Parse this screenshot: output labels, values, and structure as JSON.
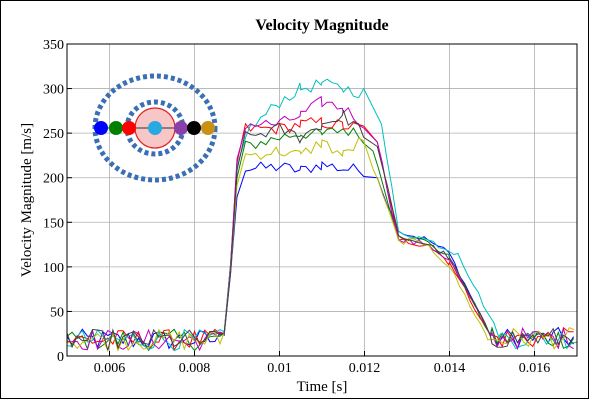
{
  "chart_data": {
    "type": "line",
    "title": "Velocity Magnitude",
    "xlabel": "Time [s]",
    "ylabel": "Velocity Magnitude [m/s]",
    "xlim": [
      0.005,
      0.017
    ],
    "ylim": [
      0,
      350
    ],
    "x_ticks": [
      0.006,
      0.008,
      0.01,
      0.012,
      0.014,
      0.016
    ],
    "x_tick_labels": [
      "0.006",
      "0.008",
      "0.01",
      "0.012",
      "0.014",
      "0.016"
    ],
    "y_ticks": [
      0,
      50,
      100,
      150,
      200,
      250,
      300,
      350
    ],
    "y_tick_labels": [
      "0",
      "50",
      "100",
      "150",
      "200",
      "250",
      "300",
      "350"
    ],
    "grid": true,
    "series": [
      {
        "color": "#0000ff",
        "profile": {
          "plateau": [
            [
              0.0092,
              210
            ],
            [
              0.01,
              212
            ],
            [
              0.0105,
              208
            ],
            [
              0.011,
              215
            ],
            [
              0.0115,
              210
            ],
            [
              0.012,
              208
            ]
          ],
          "peak_time": 0.0123,
          "peak_value": 200,
          "mid": [
            [
              0.0128,
              140
            ],
            [
              0.0135,
              130
            ],
            [
              0.014,
              115
            ]
          ],
          "drop_end": 0.015
        }
      },
      {
        "color": "#008000",
        "profile": {
          "plateau": [
            [
              0.0092,
              235
            ],
            [
              0.01,
              245
            ],
            [
              0.0105,
              250
            ],
            [
              0.011,
              248
            ],
            [
              0.0115,
              255
            ],
            [
              0.012,
              245
            ]
          ],
          "peak_time": 0.0122,
          "peak_value": 230,
          "mid": [
            [
              0.0128,
              135
            ],
            [
              0.0135,
              128
            ],
            [
              0.014,
              110
            ]
          ],
          "drop_end": 0.015
        }
      },
      {
        "color": "#ff0000",
        "profile": {
          "plateau": [
            [
              0.0092,
              255
            ],
            [
              0.01,
              255
            ],
            [
              0.0105,
              260
            ],
            [
              0.011,
              262
            ],
            [
              0.0115,
              258
            ],
            [
              0.012,
              255
            ]
          ],
          "peak_time": 0.0123,
          "peak_value": 240,
          "mid": [
            [
              0.0128,
              130
            ],
            [
              0.0135,
              125
            ],
            [
              0.014,
              105
            ]
          ],
          "drop_end": 0.015
        }
      },
      {
        "color": "#00bfbf",
        "profile": {
          "plateau": [
            [
              0.0092,
              250
            ],
            [
              0.01,
              285
            ],
            [
              0.0105,
              300
            ],
            [
              0.011,
              305
            ],
            [
              0.0115,
              300
            ],
            [
              0.012,
              295
            ]
          ],
          "peak_time": 0.0124,
          "peak_value": 260,
          "mid": [
            [
              0.0128,
              140
            ],
            [
              0.0135,
              130
            ],
            [
              0.0142,
              115
            ]
          ],
          "drop_end": 0.0152
        }
      },
      {
        "color": "#bf00bf",
        "profile": {
          "plateau": [
            [
              0.0092,
              260
            ],
            [
              0.01,
              260
            ],
            [
              0.0105,
              270
            ],
            [
              0.011,
              285
            ],
            [
              0.0115,
              278
            ],
            [
              0.012,
              260
            ]
          ],
          "peak_time": 0.0123,
          "peak_value": 240,
          "mid": [
            [
              0.0128,
              130
            ],
            [
              0.0135,
              125
            ],
            [
              0.014,
              108
            ]
          ],
          "drop_end": 0.015
        }
      },
      {
        "color": "#bfbf00",
        "profile": {
          "plateau": [
            [
              0.0092,
              225
            ],
            [
              0.01,
              230
            ],
            [
              0.0105,
              225
            ],
            [
              0.011,
              240
            ],
            [
              0.0115,
              225
            ],
            [
              0.012,
              245
            ]
          ],
          "peak_time": 0.0122,
          "peak_value": 210,
          "mid": [
            [
              0.0128,
              130
            ],
            [
              0.0135,
              125
            ],
            [
              0.014,
              100
            ]
          ],
          "drop_end": 0.0149
        }
      },
      {
        "color": "#404040",
        "profile": {
          "plateau": [
            [
              0.0092,
              245
            ],
            [
              0.01,
              255
            ],
            [
              0.0105,
              245
            ],
            [
              0.011,
              260
            ],
            [
              0.0115,
              270
            ],
            [
              0.012,
              250
            ]
          ],
          "peak_time": 0.0123,
          "peak_value": 235,
          "mid": [
            [
              0.0128,
              135
            ],
            [
              0.0135,
              125
            ],
            [
              0.014,
              110
            ]
          ],
          "drop_end": 0.015
        }
      }
    ],
    "noise_floor": {
      "mean": 18,
      "amplitude": 12
    },
    "inset": {
      "dot_colors": [
        "#0000ff",
        "#008000",
        "#ff0000",
        "#29a9e0",
        "#8b3fa8",
        "#000000",
        "#c89016"
      ],
      "ring_color": "#3a6fb5",
      "center_circle_fill": "#f7c6c6",
      "center_circle_stroke": "#e02020"
    }
  }
}
